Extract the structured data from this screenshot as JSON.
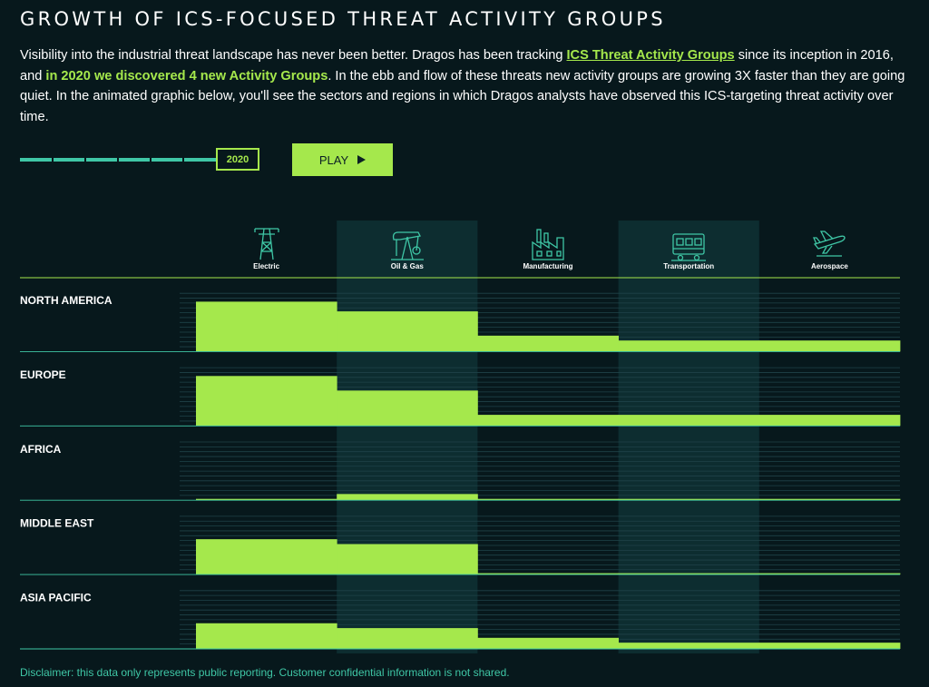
{
  "header": {
    "title": "GROWTH OF ICS-FOCUSED THREAT ACTIVITY GROUPS",
    "intro_part1": "Visibility into the industrial threat landscape has never been better. Dragos has been tracking ",
    "intro_link": "ICS Threat Activity Groups",
    "intro_part2": " since its inception in 2016, and ",
    "intro_highlight": "in 2020 we discovered 4 new Activity Groups",
    "intro_part3": ". In the ebb and flow of these threats new activity groups are growing 3X faster than they are going quiet. In the animated graphic below, you'll see the sectors and regions in which Dragos analysts have observed this ICS-targeting threat activity over time."
  },
  "controls": {
    "year": "2020",
    "play_label": "PLAY"
  },
  "colors": {
    "background": "#07181c",
    "bar": "#a5e84c",
    "accent": "#3fc7a6",
    "highlight_column": "#0d2d30"
  },
  "chart_data": {
    "type": "bar",
    "year": "2020",
    "categories": [
      "Electric",
      "Oil & Gas",
      "Manufacturing",
      "Transportation",
      "Aerospace"
    ],
    "category_icons": [
      "power-pylon-icon",
      "oil-pump-icon",
      "factory-icon",
      "train-icon",
      "airplane-icon"
    ],
    "highlighted_categories": [
      "Oil & Gas",
      "Transportation"
    ],
    "grid": true,
    "series": [
      {
        "name": "NORTH AMERICA",
        "values": [
          10,
          8,
          3,
          2,
          2
        ]
      },
      {
        "name": "EUROPE",
        "values": [
          10,
          7,
          2,
          2,
          2
        ]
      },
      {
        "name": "AFRICA",
        "values": [
          0,
          1,
          0,
          0,
          0
        ]
      },
      {
        "name": "MIDDLE EAST",
        "values": [
          7,
          6,
          0,
          0,
          0
        ]
      },
      {
        "name": "ASIA PACIFIC",
        "values": [
          5,
          4,
          2,
          1,
          1
        ]
      }
    ]
  },
  "footer": {
    "disclaimer": "Disclaimer: this data only represents public reporting. Customer confidential information is not shared."
  }
}
